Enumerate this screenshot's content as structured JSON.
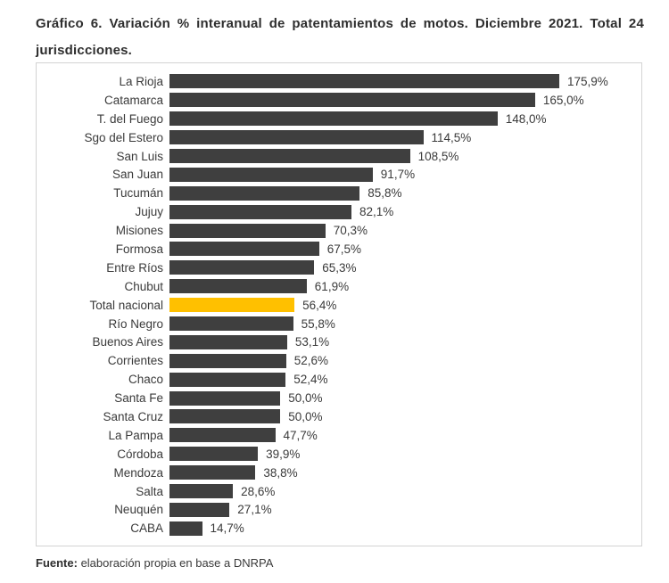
{
  "title": {
    "line1": "Gráfico 6. Variación % interanual de patentamientos de motos. Diciembre 2021. Total 24",
    "line2": "jurisdicciones."
  },
  "footer": {
    "source_label": "Fuente:",
    "source_text": " elaboración propia en base a DNRPA"
  },
  "colors": {
    "bar_default": "#3f3f3f",
    "bar_highlight": "#ffc000",
    "text": "#3a3a3a",
    "box_border": "#d3d3d3"
  },
  "chart_data": {
    "type": "bar",
    "orientation": "horizontal",
    "title": "Gráfico 6. Variación % interanual de patentamientos de motos. Diciembre 2021. Total 24 jurisdicciones.",
    "xlabel": "",
    "ylabel": "",
    "xlim": [
      0,
      197
    ],
    "grid": false,
    "legend": "none",
    "value_suffix": "%",
    "decimal_separator": ",",
    "highlight_category": "Total nacional",
    "categories": [
      "La Rioja",
      "Catamarca",
      "T. del Fuego",
      "Sgo del Estero",
      "San Luis",
      "San Juan",
      "Tucumán",
      "Jujuy",
      "Misiones",
      "Formosa",
      "Entre Ríos",
      "Chubut",
      "Total nacional",
      "Río Negro",
      "Buenos Aires",
      "Corrientes",
      "Chaco",
      "Santa Fe",
      "Santa Cruz",
      "La Pampa",
      "Córdoba",
      "Mendoza",
      "Salta",
      "Neuquén",
      "CABA"
    ],
    "values": [
      175.9,
      165.0,
      148.0,
      114.5,
      108.5,
      91.7,
      85.8,
      82.1,
      70.3,
      67.5,
      65.3,
      61.9,
      56.4,
      55.8,
      53.1,
      52.6,
      52.4,
      50.0,
      50.0,
      47.7,
      39.9,
      38.8,
      28.6,
      27.1,
      14.7
    ],
    "value_labels": [
      "175,9%",
      "165,0%",
      "148,0%",
      "114,5%",
      "108,5%",
      "91,7%",
      "85,8%",
      "82,1%",
      "70,3%",
      "67,5%",
      "65,3%",
      "61,9%",
      "56,4%",
      "55,8%",
      "53,1%",
      "52,6%",
      "52,4%",
      "50,0%",
      "50,0%",
      "47,7%",
      "39,9%",
      "38,8%",
      "28,6%",
      "27,1%",
      "14,7%"
    ]
  }
}
